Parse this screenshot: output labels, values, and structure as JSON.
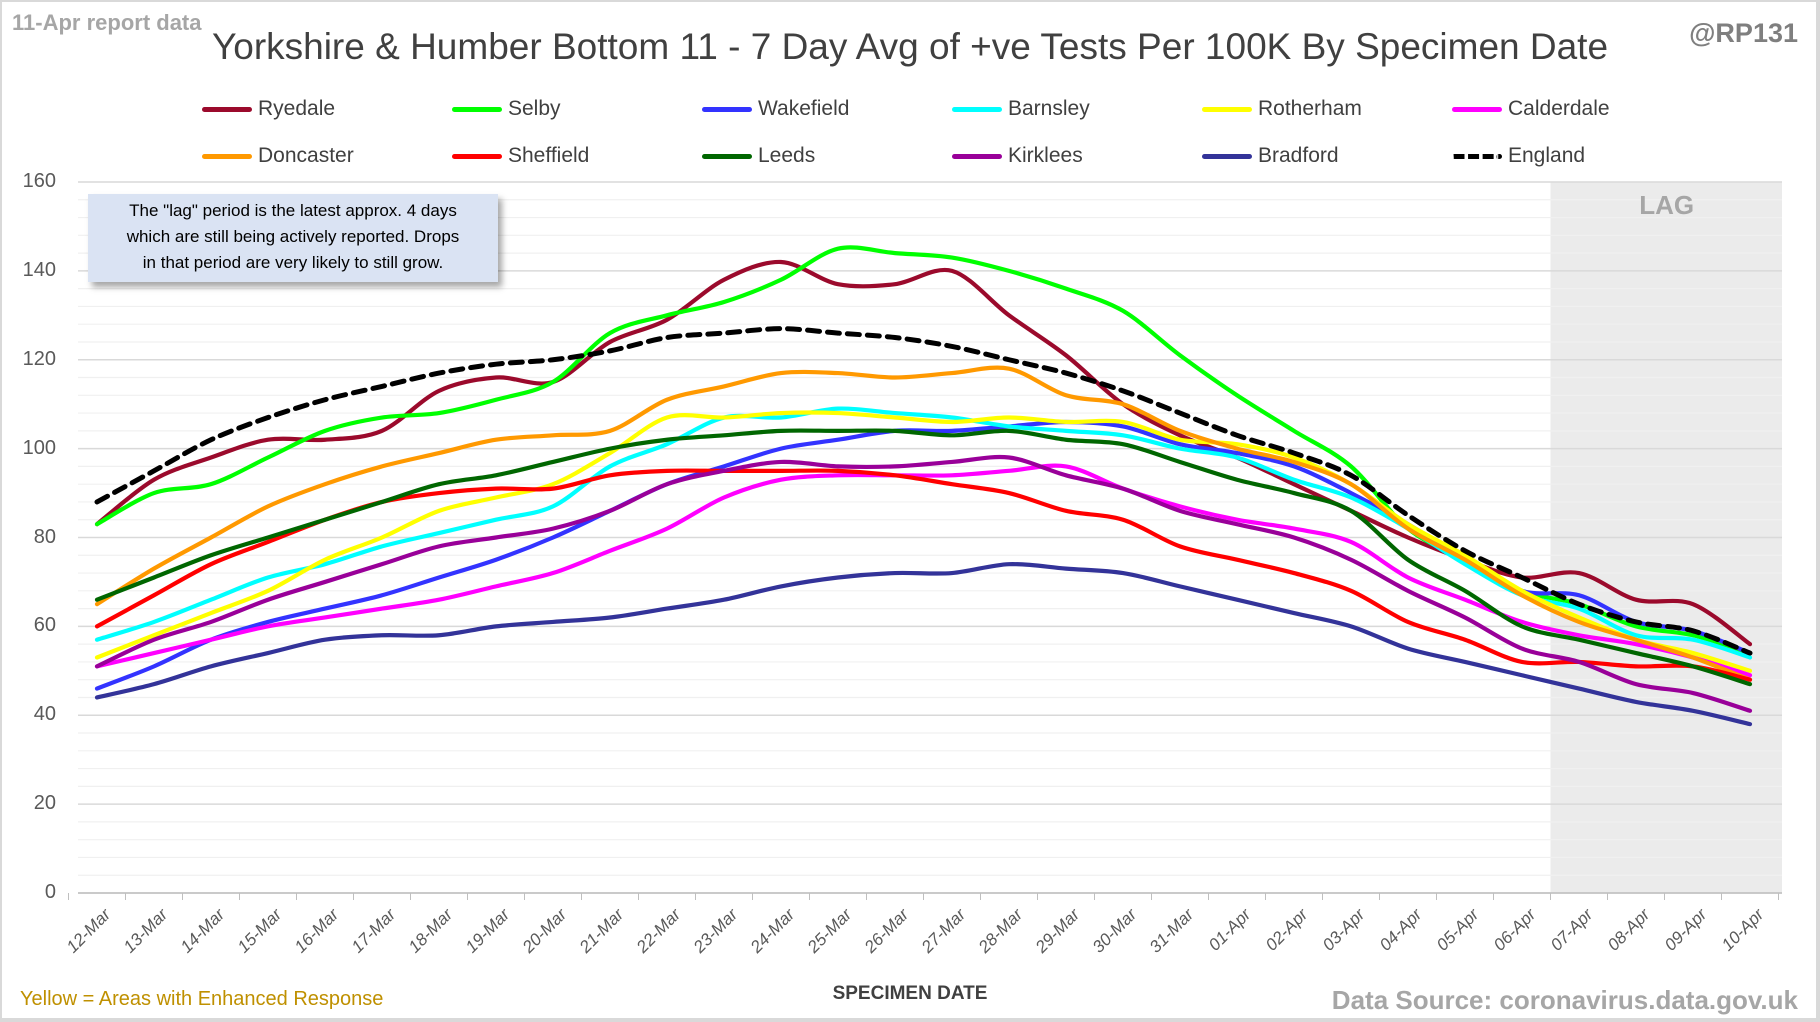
{
  "header": {
    "report_note": "11-Apr report data",
    "title": "Yorkshire & Humber Bottom 11 - 7 Day Avg of +ve Tests Per 100K By Specimen Date",
    "handle": "@RP131"
  },
  "annotation": {
    "lines": [
      "The \"lag\" period is the latest approx. 4 days",
      "which are still being actively reported.  Drops",
      "in that period are very likely to still grow."
    ]
  },
  "footer": {
    "footnote": "Yellow = Areas with Enhanced Response",
    "source": "Data Source: coronavirus.data.gov.uk"
  },
  "chart_data": {
    "type": "line",
    "title": "Yorkshire & Humber Bottom 11 - 7 Day Avg of +ve Tests Per 100K By Specimen Date",
    "xlabel": "SPECIMEN DATE",
    "ylabel": "",
    "ylim": [
      0,
      160
    ],
    "yticks": [
      0,
      20,
      40,
      60,
      80,
      100,
      120,
      140,
      160
    ],
    "grid": true,
    "legend_position": "top",
    "lag_region": {
      "from": "07-Apr",
      "to": "10-Apr",
      "label": "LAG"
    },
    "x": [
      "12-Mar",
      "13-Mar",
      "14-Mar",
      "15-Mar",
      "16-Mar",
      "17-Mar",
      "18-Mar",
      "19-Mar",
      "20-Mar",
      "21-Mar",
      "22-Mar",
      "23-Mar",
      "24-Mar",
      "25-Mar",
      "26-Mar",
      "27-Mar",
      "28-Mar",
      "29-Mar",
      "30-Mar",
      "31-Mar",
      "01-Apr",
      "02-Apr",
      "03-Apr",
      "04-Apr",
      "05-Apr",
      "06-Apr",
      "07-Apr",
      "08-Apr",
      "09-Apr",
      "10-Apr"
    ],
    "series": [
      {
        "name": "Ryedale",
        "color": "#9b0a2c",
        "dashed": false,
        "values": [
          83,
          93,
          98,
          102,
          102,
          104,
          113,
          116,
          115,
          124,
          129,
          138,
          142,
          137,
          137,
          140,
          130,
          121,
          110,
          103,
          98,
          92,
          86,
          80,
          75,
          71,
          72,
          66,
          65,
          56
        ]
      },
      {
        "name": "Selby",
        "color": "#00ff00",
        "dashed": false,
        "values": [
          83,
          90,
          92,
          98,
          104,
          107,
          108,
          111,
          115,
          126,
          130,
          133,
          138,
          145,
          144,
          143,
          140,
          136,
          131,
          121,
          112,
          104,
          96,
          82,
          75,
          68,
          65,
          60,
          58,
          54
        ]
      },
      {
        "name": "Wakefield",
        "color": "#3333ff",
        "dashed": false,
        "values": [
          46,
          51,
          57,
          61,
          64,
          67,
          71,
          75,
          80,
          86,
          92,
          96,
          100,
          102,
          104,
          104,
          105,
          106,
          105,
          101,
          99,
          96,
          90,
          83,
          75,
          68,
          67,
          61,
          59,
          54
        ]
      },
      {
        "name": "Barnsley",
        "color": "#00ffff",
        "dashed": false,
        "values": [
          57,
          61,
          66,
          71,
          74,
          78,
          81,
          84,
          87,
          96,
          101,
          107,
          107,
          109,
          108,
          107,
          105,
          104,
          103,
          100,
          98,
          93,
          89,
          82,
          74,
          67,
          64,
          58,
          57,
          53
        ]
      },
      {
        "name": "Rotherham",
        "color": "#ffff00",
        "dashed": false,
        "values": [
          53,
          58,
          63,
          68,
          75,
          80,
          86,
          89,
          92,
          99,
          107,
          107,
          108,
          108,
          107,
          106,
          107,
          106,
          106,
          102,
          101,
          98,
          92,
          83,
          76,
          68,
          62,
          57,
          54,
          50
        ]
      },
      {
        "name": "Calderdale",
        "color": "#ff00ff",
        "dashed": false,
        "values": [
          51,
          54,
          57,
          60,
          62,
          64,
          66,
          69,
          72,
          77,
          82,
          89,
          93,
          94,
          94,
          94,
          95,
          96,
          91,
          87,
          84,
          82,
          79,
          71,
          66,
          61,
          58,
          56,
          53,
          49
        ]
      },
      {
        "name": "Doncaster",
        "color": "#ff9900",
        "dashed": false,
        "values": [
          65,
          73,
          80,
          87,
          92,
          96,
          99,
          102,
          103,
          104,
          111,
          114,
          117,
          117,
          116,
          117,
          118,
          112,
          110,
          104,
          100,
          97,
          92,
          82,
          75,
          67,
          61,
          57,
          53,
          48
        ]
      },
      {
        "name": "Sheffield",
        "color": "#ff0000",
        "dashed": false,
        "values": [
          60,
          67,
          74,
          79,
          84,
          88,
          90,
          91,
          91,
          94,
          95,
          95,
          95,
          95,
          94,
          92,
          90,
          86,
          84,
          78,
          75,
          72,
          68,
          61,
          57,
          52,
          52,
          51,
          51,
          48
        ]
      },
      {
        "name": "Leeds",
        "color": "#006600",
        "dashed": false,
        "values": [
          66,
          71,
          76,
          80,
          84,
          88,
          92,
          94,
          97,
          100,
          102,
          103,
          104,
          104,
          104,
          103,
          104,
          102,
          101,
          97,
          93,
          90,
          86,
          75,
          68,
          60,
          57,
          54,
          51,
          47
        ]
      },
      {
        "name": "Kirklees",
        "color": "#990099",
        "dashed": false,
        "values": [
          51,
          57,
          61,
          66,
          70,
          74,
          78,
          80,
          82,
          86,
          92,
          95,
          97,
          96,
          96,
          97,
          98,
          94,
          91,
          86,
          83,
          80,
          75,
          68,
          62,
          55,
          52,
          47,
          45,
          41
        ]
      },
      {
        "name": "Bradford",
        "color": "#333399",
        "dashed": false,
        "values": [
          44,
          47,
          51,
          54,
          57,
          58,
          58,
          60,
          61,
          62,
          64,
          66,
          69,
          71,
          72,
          72,
          74,
          73,
          72,
          69,
          66,
          63,
          60,
          55,
          52,
          49,
          46,
          43,
          41,
          38
        ]
      },
      {
        "name": "England",
        "color": "#000000",
        "dashed": true,
        "values": [
          88,
          95,
          102,
          107,
          111,
          114,
          117,
          119,
          120,
          122,
          125,
          126,
          127,
          126,
          125,
          123,
          120,
          117,
          113,
          108,
          103,
          99,
          94,
          85,
          77,
          71,
          65,
          61,
          59,
          54
        ]
      }
    ]
  }
}
